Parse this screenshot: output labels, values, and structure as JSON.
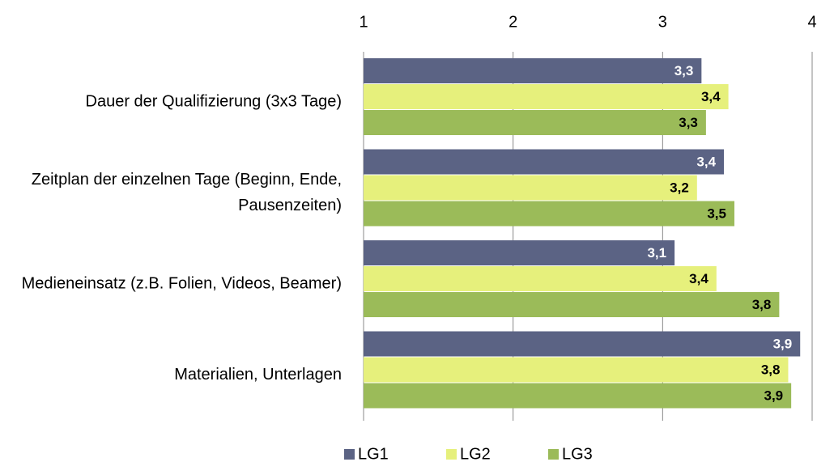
{
  "chart_data": {
    "type": "bar",
    "orientation": "horizontal",
    "categories": [
      "Dauer der Qualifizierung (3x3 Tage)",
      "Zeitplan der einzelnen Tage (Beginn, Ende, Pausenzeiten)",
      "Medieneinsatz (z.B. Folien, Videos, Beamer)",
      "Materialien, Unterlagen"
    ],
    "series": [
      {
        "name": "LG1",
        "color": "#5b6384",
        "label_color": "#ffffff",
        "values": [
          3.26,
          3.41,
          3.08,
          3.92
        ],
        "value_labels": [
          "3,3",
          "3,4",
          "3,1",
          "3,9"
        ]
      },
      {
        "name": "LG2",
        "color": "#e6f07c",
        "label_color": "#000000",
        "values": [
          3.44,
          3.23,
          3.36,
          3.84
        ],
        "value_labels": [
          "3,4",
          "3,2",
          "3,4",
          "3,8"
        ]
      },
      {
        "name": "LG3",
        "color": "#9bbb59",
        "label_color": "#000000",
        "values": [
          3.29,
          3.48,
          3.78,
          3.86
        ],
        "value_labels": [
          "3,3",
          "3,5",
          "3,8",
          "3,9"
        ]
      }
    ],
    "xlim": [
      1,
      4
    ],
    "xticks": [
      1,
      2,
      3,
      4
    ],
    "grid": true,
    "legend": "bottom"
  }
}
